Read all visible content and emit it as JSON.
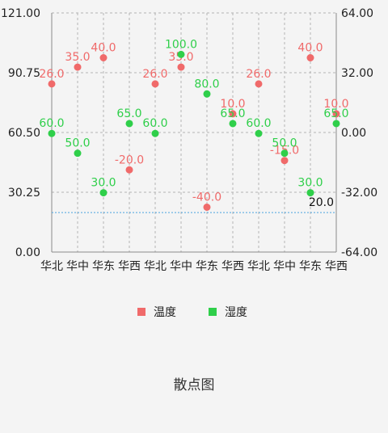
{
  "chart_data": {
    "type": "scatter",
    "caption": "散点图",
    "categories": [
      "华北",
      "华中",
      "华东",
      "华西",
      "华北",
      "华中",
      "华东",
      "华西",
      "华北",
      "华中",
      "华东",
      "华西"
    ],
    "left_axis": {
      "ticks": [
        "121.00",
        "90.75",
        "60.50",
        "30.25",
        "0.00"
      ],
      "ylim": [
        0,
        121
      ]
    },
    "right_axis": {
      "ticks": [
        "64.00",
        "32.00",
        "0.00",
        "-32.00",
        "-64.00"
      ],
      "ylim": [
        -64,
        64
      ]
    },
    "grid": true,
    "legend_placement": "bottom-center",
    "limit_line": {
      "value": 20,
      "axis": "left",
      "label": "20.0",
      "color": "#4aa3df"
    },
    "series": [
      {
        "name": "温度",
        "axis": "right",
        "color": "#f06a6a",
        "values": [
          26,
          35,
          40,
          -20,
          26,
          35,
          -40,
          10,
          26,
          -15,
          40,
          10
        ],
        "labels": [
          "26.0",
          "35.0",
          "40.0",
          "-20.0",
          "26.0",
          "35.0",
          "-40.0",
          "10.0",
          "26.0",
          "-15.0",
          "40.0",
          "10.0"
        ]
      },
      {
        "name": "湿度",
        "axis": "left",
        "color": "#2fcf4a",
        "values": [
          60,
          50,
          30,
          65,
          60,
          100,
          80,
          65,
          60,
          50,
          30,
          65
        ],
        "labels": [
          "60.0",
          "50.0",
          "30.0",
          "65.0",
          "60.0",
          "100.0",
          "80.0",
          "65.0",
          "60.0",
          "50.0",
          "30.0",
          "65.0"
        ]
      }
    ]
  }
}
